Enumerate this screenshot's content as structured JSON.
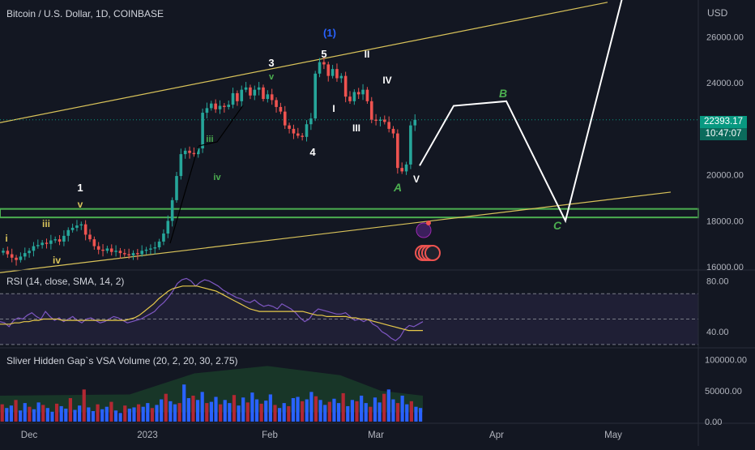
{
  "header": {
    "title": "Bitcoin / U.S. Dollar, 1D, COINBASE",
    "currency": "USD"
  },
  "price_badge": {
    "price": "22393.17",
    "countdown": "10:47:07",
    "color": "#089981"
  },
  "chart_data": [
    {
      "type": "candlestick",
      "title": "Bitcoin / U.S. Dollar, 1D, COINBASE",
      "ylabel": "USD",
      "y_ticks": [
        16000,
        18000,
        20000,
        22000,
        24000,
        26000
      ],
      "y_tick_labels": [
        "16000.00",
        "18000.00",
        "20000.00",
        "22000.00",
        "24000.00",
        "26000.00"
      ],
      "ylim": [
        15900,
        27600
      ],
      "x_ticks": [
        "Dec",
        "2023",
        "Feb",
        "Mar",
        "Apr",
        "May"
      ],
      "last_price": 22393.17,
      "candles_close": [
        16700,
        16550,
        16400,
        16300,
        16450,
        16600,
        16700,
        16900,
        16950,
        17050,
        17000,
        17150,
        17200,
        17100,
        17350,
        17600,
        17700,
        17800,
        17850,
        17400,
        17200,
        16900,
        16750,
        16700,
        16800,
        16650,
        16700,
        16600,
        16550,
        16500,
        16600,
        16550,
        16700,
        16750,
        16800,
        16850,
        17100,
        17450,
        18000,
        18900,
        19950,
        20900,
        21050,
        20950,
        20900,
        21150,
        22700,
        22900,
        23100,
        22850,
        23000,
        22950,
        23050,
        23550,
        23200,
        23700,
        23800,
        23450,
        23700,
        23800,
        23300,
        23500,
        23250,
        22950,
        22750,
        22150,
        22000,
        21800,
        21700,
        21650,
        22200,
        22450,
        24400,
        24900,
        24800,
        24300,
        24600,
        24200,
        24300,
        23400,
        23200,
        23600,
        23500,
        23700,
        23200,
        22400,
        22350,
        22400,
        22300,
        22000,
        21800,
        20300,
        20150,
        20450,
        22150,
        22393
      ],
      "trend_lines": [
        {
          "from": [
            "start",
            22270
          ],
          "to": [
            "end",
            29800
          ],
          "color": "#d9c35a"
        },
        {
          "from": [
            "start",
            15700
          ],
          "to": [
            "end",
            19500
          ],
          "color": "#d9c35a"
        }
      ],
      "support_zone": [
        18150,
        18520
      ],
      "projection": {
        "labels": [
          "A",
          "B",
          "C"
        ],
        "prices": [
          20400,
          23000,
          23200,
          18000,
          28000
        ]
      },
      "wave_labels": [
        "1",
        "3",
        "5",
        "(1)",
        "II",
        "IV",
        "I",
        "III",
        "V",
        "4",
        "iii",
        "iv",
        "v",
        "i",
        "A",
        "B",
        "C"
      ]
    },
    {
      "type": "line",
      "title": "RSI (14, close, SMA, 14, 2)",
      "y_ticks": [
        40,
        80
      ],
      "y_tick_labels": [
        "40.00",
        "80.00"
      ],
      "ylim": [
        28,
        88
      ],
      "band": [
        30,
        70
      ],
      "series": [
        {
          "name": "RSI",
          "values": [
            48,
            47,
            44,
            49,
            51,
            50,
            53,
            55,
            52,
            50,
            56,
            52,
            49,
            51,
            48,
            50,
            52,
            49,
            47,
            50,
            51,
            49,
            47,
            48,
            50,
            52,
            51,
            49,
            47,
            48,
            49,
            50,
            52,
            54,
            56,
            60,
            63,
            67,
            72,
            78,
            81,
            82,
            80,
            76,
            79,
            81,
            80,
            78,
            76,
            73,
            71,
            69,
            67,
            66,
            64,
            63,
            65,
            62,
            60,
            61,
            60,
            58,
            62,
            60,
            58,
            55,
            51,
            48,
            50,
            55,
            58,
            57,
            56,
            55,
            54,
            54,
            55,
            52,
            49,
            50,
            48,
            50,
            46,
            44,
            40,
            38,
            35,
            33,
            36,
            42,
            45,
            44,
            46,
            48
          ],
          "color": "#7e57c2"
        },
        {
          "name": "SMA",
          "values": [
            46,
            46,
            46,
            47,
            47,
            48,
            48,
            49,
            49,
            50,
            50,
            50,
            50,
            49,
            49,
            49,
            49,
            49,
            49,
            49,
            49,
            49,
            49,
            49,
            49,
            49,
            49,
            50,
            51,
            53,
            56,
            59,
            62,
            66,
            69,
            72,
            74,
            75,
            76,
            76,
            76,
            76,
            75,
            74,
            73,
            72,
            70,
            68,
            66,
            64,
            62,
            60,
            58,
            57,
            56,
            56,
            56,
            56,
            56,
            56,
            56,
            56,
            56,
            56,
            55,
            54,
            53,
            53,
            52,
            52,
            52,
            52,
            52,
            51,
            51,
            50,
            50,
            49,
            48,
            47,
            46,
            45,
            44,
            43,
            42,
            41,
            41,
            41,
            41
          ],
          "color": "#e6c84a"
        }
      ]
    },
    {
      "type": "bar",
      "title": "Sliver Hidden Gap`s VSA Volume (20, 2, 20, 30, 2.75)",
      "y_ticks": [
        0,
        50000,
        100000
      ],
      "y_tick_labels": [
        "0.00",
        "50000.00",
        "100000.00"
      ],
      "ylim": [
        0,
        118000
      ],
      "values": [
        28000,
        22000,
        26000,
        35000,
        18000,
        30000,
        24000,
        20000,
        31000,
        27000,
        22000,
        16000,
        29000,
        25000,
        21000,
        38000,
        19000,
        26000,
        52000,
        23000,
        17000,
        28000,
        20000,
        24000,
        32000,
        18000,
        14000,
        26000,
        21000,
        23000,
        28000,
        24000,
        30000,
        22000,
        27000,
        36000,
        45000,
        33000,
        28000,
        30000,
        60000,
        38000,
        42000,
        35000,
        48000,
        30000,
        32000,
        40000,
        28000,
        35000,
        30000,
        43000,
        26000,
        39000,
        31000,
        47000,
        36000,
        29000,
        34000,
        44000,
        27000,
        22000,
        30000,
        25000,
        38000,
        40000,
        33000,
        36000,
        48000,
        41000,
        35000,
        27000,
        32000,
        37000,
        30000,
        46000,
        25000,
        35000,
        33000,
        42000,
        30000,
        24000,
        39000,
        31000,
        45000,
        52000,
        36000,
        30000,
        42000,
        28000,
        33000,
        24000,
        22000
      ],
      "colors": [
        "#2962ff",
        "#b22833"
      ],
      "envelope": {
        "name": "band",
        "color": "#1e3a2a"
      }
    }
  ]
}
